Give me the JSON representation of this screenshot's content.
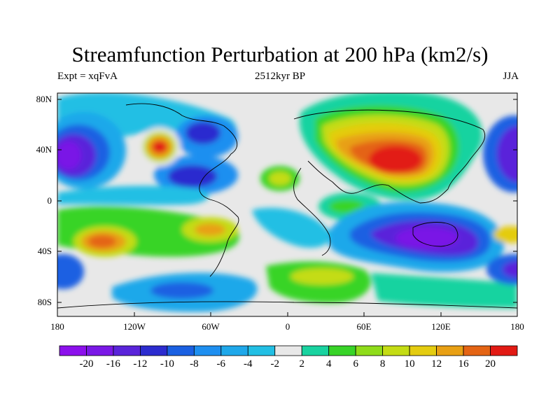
{
  "title": "Streamfunction Perturbation at 200 hPa (km2/s)",
  "subtitle": {
    "left": "Expt = xqFvA",
    "center": "2512kyr BP",
    "right": "JJA"
  },
  "lat_labels": [
    "80N",
    "40N",
    "0",
    "40S",
    "80S"
  ],
  "lon_labels": [
    "180",
    "120W",
    "60W",
    "0",
    "60E",
    "120E",
    "180"
  ],
  "colorbar": {
    "levels": [
      "-20",
      "-16",
      "-12",
      "-10",
      "-8",
      "-6",
      "-4",
      "-2",
      "2",
      "4",
      "6",
      "8",
      "10",
      "12",
      "16",
      "20"
    ],
    "colors": [
      "#8c10ec",
      "#7a18e6",
      "#5a24da",
      "#2c2ccf",
      "#1a60e2",
      "#1e8ff0",
      "#1fa8ea",
      "#22bfe4",
      "#e8e8e8",
      "#19d3a0",
      "#38d428",
      "#8fdc1a",
      "#c4dc14",
      "#e4cc10",
      "#e8a014",
      "#e46414",
      "#e21a14"
    ]
  }
}
